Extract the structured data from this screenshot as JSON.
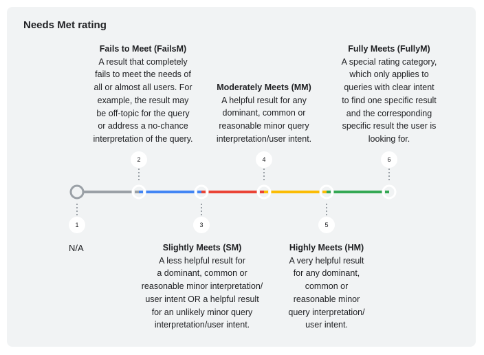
{
  "title": "Needs Met rating",
  "na_label": "N/A",
  "colors": {
    "background": "#f1f3f4",
    "na_segment": "#9aa0a6",
    "fails_segment": "#4285f4",
    "slightly_segment": "#ea4335",
    "moderately_segment": "#fbbc04",
    "highly_segment": "#34a853"
  },
  "markers": [
    {
      "number": "1"
    },
    {
      "number": "2"
    },
    {
      "number": "3"
    },
    {
      "number": "4"
    },
    {
      "number": "5"
    },
    {
      "number": "6"
    }
  ],
  "ratings": {
    "fails": {
      "heading": "Fails to Meet (FailsM)",
      "body": "A result that completely\nfails to meet the needs of\nall or almost all users. For\nexample, the result may\nbe off-topic for the query\nor address a no-chance\ninterpretation of the query."
    },
    "moderately": {
      "heading": "Moderately Meets (MM)",
      "body": "A helpful result for any\ndominant, common or\nreasonable minor query\ninterpretation/user intent."
    },
    "fully": {
      "heading": "Fully Meets (FullyM)",
      "body": "A special rating category,\nwhich only applies to\nqueries with clear intent\nto find one specific result\nand the corresponding\nspecific result the user is\nlooking for."
    },
    "slightly": {
      "heading": "Slightly Meets (SM)",
      "body": "A less helpful result for\na dominant, common or\nreasonable minor interpretation/\nuser intent OR a helpful result\nfor an unlikely minor query\ninterpretation/user intent."
    },
    "highly": {
      "heading": "Highly Meets (HM)",
      "body": "A very helpful result\nfor any dominant,\ncommon or\nreasonable minor\nquery interpretation/\nuser intent."
    }
  }
}
